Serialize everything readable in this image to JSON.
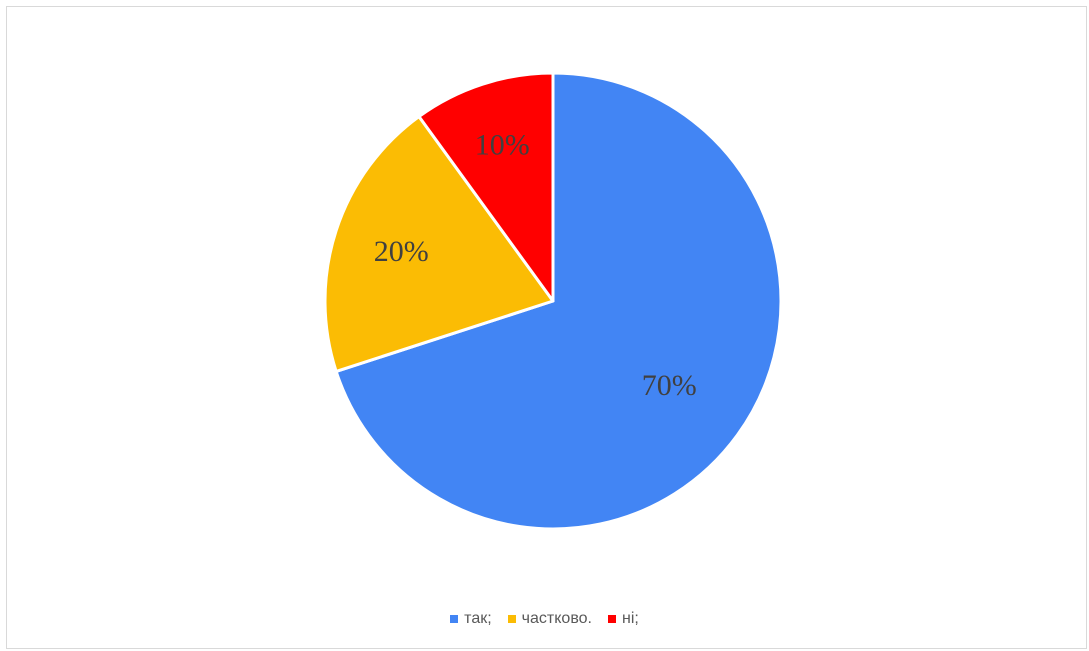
{
  "chart_data": {
    "type": "pie",
    "categories": [
      "так;",
      "частково.",
      "ні;"
    ],
    "values": [
      70,
      20,
      10
    ],
    "data_labels": [
      "70%",
      "20%",
      "10%"
    ],
    "colors": [
      "#4285F4",
      "#FBBC04",
      "#FF0000"
    ],
    "legend_position": "bottom"
  }
}
